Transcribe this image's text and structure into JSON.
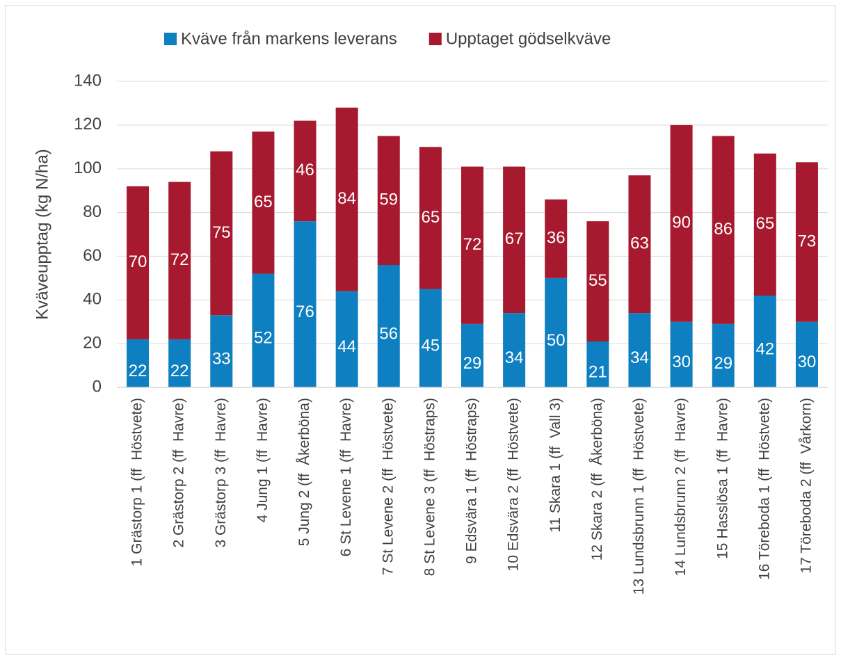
{
  "chart_data": {
    "type": "stacked_bar",
    "categories": [
      "1 Grästorp 1 (ff  Höstvete)",
      "2 Grästorp 2 (ff  Havre)",
      "3 Grästorp 3 (ff  Havre)",
      "4 Jung 1 (ff  Havre)",
      "5 Jung 2 (ff  Åkerböna)",
      "6 St Levene 1 (ff  Havre)",
      "7 St Levene 2 (ff  Höstvete)",
      "8 St Levene 3 (ff  Höstraps)",
      "9 Edsvära 1 (ff  Höstraps)",
      "10 Edsvära 2 (ff  Höstvete)",
      "11 Skara 1 (ff  Vall 3)",
      "12 Skara 2 (ff  Åkerböna)",
      "13 Lundsbrunn 1 (ff  Höstvete)",
      "14 Lundsbrunn 2 (ff  Havre)",
      "15 Hasslösa 1 (ff  Havre)",
      "16 Töreboda 1 (ff  Höstvete)",
      "17 Töreboda 2 (ff  Vårkorn)"
    ],
    "series": [
      {
        "name": "Kväve från markens leverans",
        "color": "#0e7fc0",
        "values": [
          22,
          22,
          33,
          52,
          76,
          44,
          56,
          45,
          29,
          34,
          50,
          21,
          34,
          30,
          29,
          42,
          30
        ]
      },
      {
        "name": "Upptaget gödselkväve",
        "color": "#a6192e",
        "values": [
          70,
          72,
          75,
          65,
          46,
          84,
          59,
          65,
          72,
          67,
          36,
          55,
          63,
          90,
          86,
          65,
          73
        ]
      }
    ],
    "y_label": "Kväveupptag (kg N/ha)",
    "ylim": [
      0,
      140
    ],
    "yticks": [
      0,
      20,
      40,
      60,
      80,
      100,
      120,
      140
    ],
    "grid": true,
    "legend": "top"
  }
}
